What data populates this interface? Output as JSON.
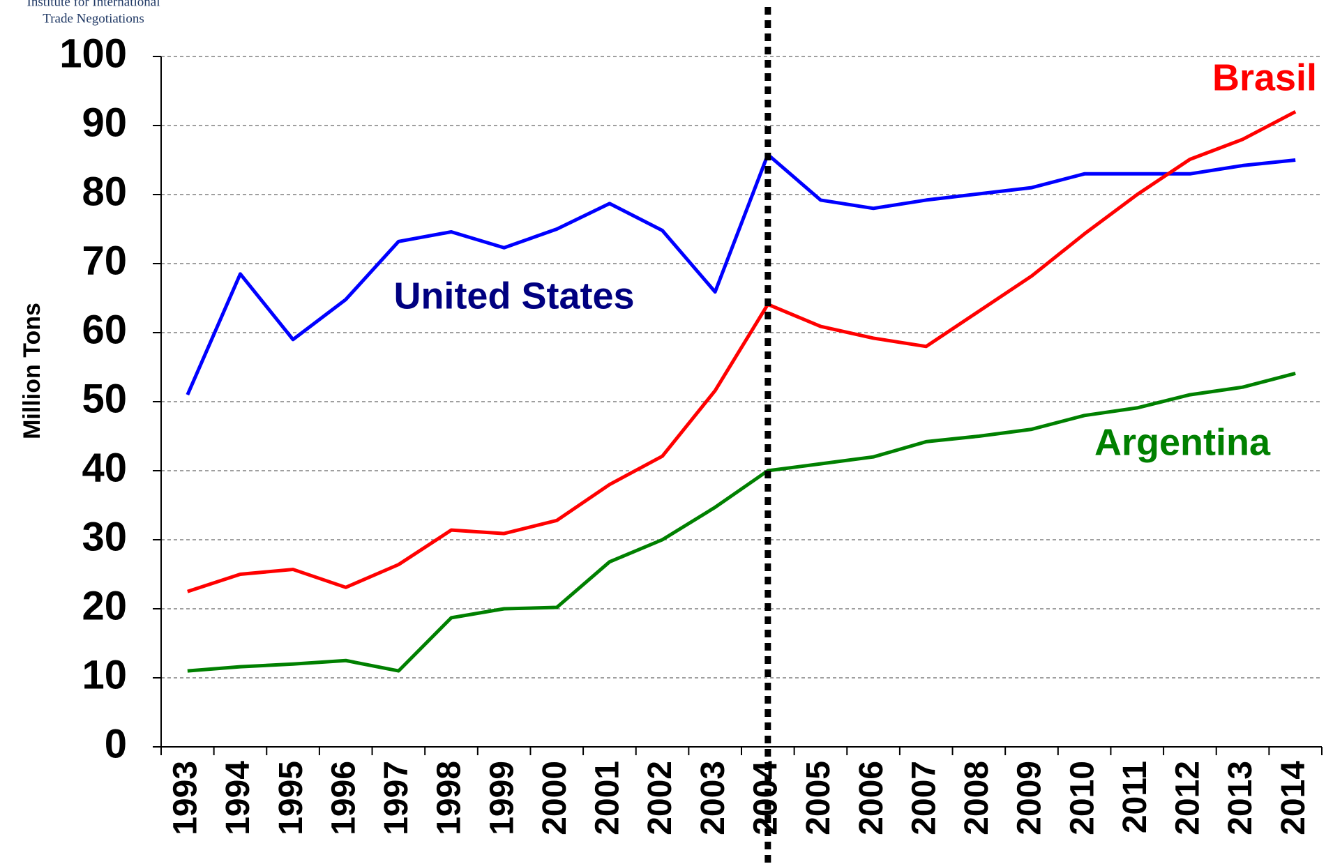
{
  "chart_data": {
    "type": "line",
    "logo": [
      "Institute for International",
      "Trade Negotiations"
    ],
    "y_label": "Million Tons",
    "categories": [
      "1993",
      "1994",
      "1995",
      "1996",
      "1997",
      "1998",
      "1999",
      "2000",
      "2001",
      "2002",
      "2003",
      "2004",
      "2005",
      "2006",
      "2007",
      "2008",
      "2009",
      "2010",
      "2011",
      "2012",
      "2013",
      "2014"
    ],
    "series": [
      {
        "name": "United States",
        "color": "#0000ff",
        "label_color": "#000080",
        "values": [
          51,
          68.5,
          59,
          64.8,
          73.2,
          74.6,
          72.3,
          75,
          78.7,
          74.8,
          65.9,
          85.8,
          79.2,
          78,
          79.2,
          80.1,
          81,
          83,
          83,
          83,
          84.2,
          85
        ]
      },
      {
        "name": "Brasil",
        "color": "#ff0000",
        "label_color": "#ff0000",
        "values": [
          22.5,
          25,
          25.7,
          23.1,
          26.4,
          31.4,
          30.9,
          32.8,
          38,
          42.1,
          51.6,
          64.1,
          60.9,
          59.2,
          58,
          63.1,
          68.2,
          74.3,
          80,
          85.1,
          88,
          92
        ]
      },
      {
        "name": "Argentina",
        "color": "#008000",
        "label_color": "#008000",
        "values": [
          11,
          11.6,
          12,
          12.5,
          11,
          18.7,
          20,
          20.2,
          26.8,
          30,
          34.7,
          40,
          41,
          42,
          44.2,
          45,
          46,
          48,
          49.1,
          51,
          52.1,
          54.1
        ]
      }
    ],
    "vline": "2004",
    "ylim": [
      0,
      100
    ],
    "yticks": [
      0,
      10,
      20,
      30,
      40,
      50,
      60,
      70,
      80,
      90,
      100
    ],
    "grid": true
  }
}
